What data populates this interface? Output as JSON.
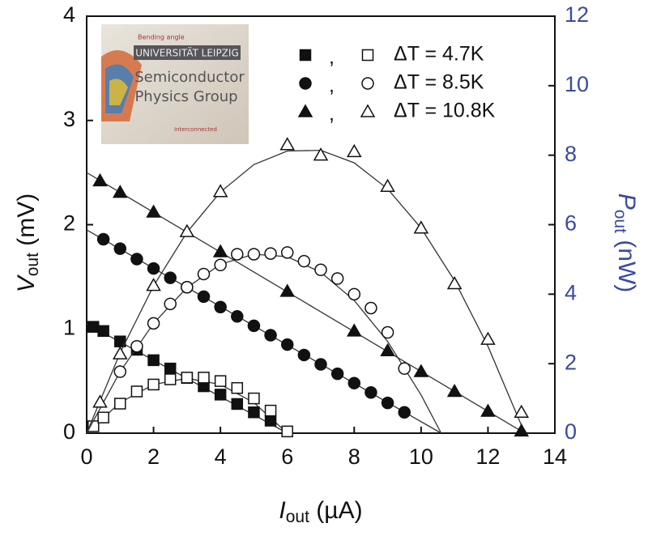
{
  "chart_data": {
    "type": "scatter",
    "x_label": {
      "main": "I",
      "sub": "out",
      "unit": " (µA)"
    },
    "y_label": {
      "main": "V",
      "sub": "out",
      "unit": " (mV)"
    },
    "y2_label": {
      "main": "P",
      "sub": "out",
      "unit": " (nW)"
    },
    "xlim": [
      0,
      14
    ],
    "xticks": [
      0,
      2,
      4,
      6,
      8,
      10,
      12,
      14
    ],
    "ylim": [
      0,
      4
    ],
    "yticks": [
      0,
      1,
      2,
      3,
      4
    ],
    "y2lim": [
      0,
      12
    ],
    "y2ticks": [
      0,
      2,
      4,
      6,
      8,
      10,
      12
    ],
    "y2_color": "#3a4aa0",
    "legend_separator": ",",
    "groups": [
      {
        "name": "ΔT = 4.7K",
        "marker": "square",
        "v": {
          "x": [
            0.2,
            0.5,
            1,
            1.5,
            2,
            2.5,
            3,
            3.5,
            4,
            4.5,
            5,
            5.5
          ],
          "values": [
            1.02,
            0.98,
            0.88,
            0.8,
            0.7,
            0.62,
            0.53,
            0.45,
            0.37,
            0.28,
            0.2,
            0.12
          ]
        },
        "p": {
          "x": [
            0.2,
            0.5,
            1,
            1.5,
            2,
            2.5,
            3,
            3.5,
            4,
            4.5,
            5,
            5.5,
            6
          ],
          "values": [
            0.2,
            0.45,
            0.85,
            1.2,
            1.4,
            1.55,
            1.6,
            1.6,
            1.5,
            1.3,
            1.0,
            0.65,
            0.05
          ]
        },
        "v_fit": {
          "x": [
            0,
            6
          ],
          "values": [
            1.05,
            0
          ]
        },
        "p_fit": {
          "x": [
            0,
            1,
            2,
            3,
            4,
            5,
            6
          ],
          "values": [
            0,
            0.88,
            1.4,
            1.58,
            1.4,
            0.88,
            0
          ]
        }
      },
      {
        "name": "ΔT = 8.5K",
        "marker": "circle",
        "v": {
          "x": [
            0.5,
            1,
            1.5,
            2,
            2.5,
            3,
            3.5,
            4,
            4.5,
            5,
            5.5,
            6,
            6.5,
            7,
            7.5,
            8,
            8.5,
            9,
            9.5
          ],
          "values": [
            1.86,
            1.77,
            1.67,
            1.58,
            1.49,
            1.4,
            1.31,
            1.21,
            1.12,
            1.03,
            0.94,
            0.85,
            0.75,
            0.66,
            0.57,
            0.48,
            0.39,
            0.29,
            0.2
          ]
        },
        "p": {
          "x": [
            1,
            1.5,
            2,
            2.5,
            3,
            3.5,
            4,
            4.5,
            5,
            5.5,
            6,
            6.5,
            7,
            7.5,
            8,
            8.5,
            9,
            9.5
          ],
          "values": [
            1.77,
            2.5,
            3.16,
            3.72,
            4.2,
            4.58,
            4.84,
            5.15,
            5.15,
            5.17,
            5.2,
            4.95,
            4.7,
            4.45,
            4.0,
            3.6,
            2.9,
            1.86
          ]
        },
        "v_fit": {
          "x": [
            0,
            10.6
          ],
          "values": [
            1.95,
            0
          ]
        },
        "p_fit": {
          "x": [
            0,
            1,
            2,
            3,
            4,
            5,
            6,
            7,
            8,
            9,
            10,
            10.6
          ],
          "values": [
            0,
            1.77,
            3.16,
            4.19,
            4.86,
            5.15,
            5.08,
            4.63,
            3.82,
            2.64,
            1.1,
            0
          ]
        }
      },
      {
        "name": "ΔT = 10.8K",
        "marker": "triangle",
        "v": {
          "x": [
            0.4,
            1,
            2,
            4,
            6,
            8,
            9,
            10,
            11,
            12,
            13
          ],
          "values": [
            2.42,
            2.31,
            2.12,
            1.74,
            1.36,
            0.98,
            0.79,
            0.59,
            0.4,
            0.21,
            0.02
          ]
        },
        "p": {
          "x": [
            0.4,
            1,
            2,
            3,
            4,
            6,
            7,
            8,
            9,
            10,
            11,
            12,
            13
          ],
          "values": [
            0.89,
            2.28,
            4.25,
            5.8,
            6.95,
            8.3,
            8.0,
            8.1,
            7.1,
            5.9,
            4.3,
            2.7,
            0.6
          ]
        },
        "v_fit": {
          "x": [
            0,
            13.1
          ],
          "values": [
            2.5,
            0
          ]
        },
        "p_fit": {
          "x": [
            0,
            1,
            2,
            3,
            4,
            5,
            6,
            7,
            8,
            9,
            10,
            11,
            12,
            13.1
          ],
          "values": [
            0,
            2.31,
            4.24,
            5.78,
            6.94,
            7.73,
            8.12,
            8.14,
            7.78,
            7.03,
            5.9,
            4.39,
            2.5,
            0
          ]
        }
      }
    ]
  },
  "inset": {
    "banner": "UNIVERSITÄT LEIPZIG",
    "line1": "Semiconductor",
    "line2": "Physics Group",
    "note1": "Bending angle",
    "note2": "Interconnected"
  }
}
